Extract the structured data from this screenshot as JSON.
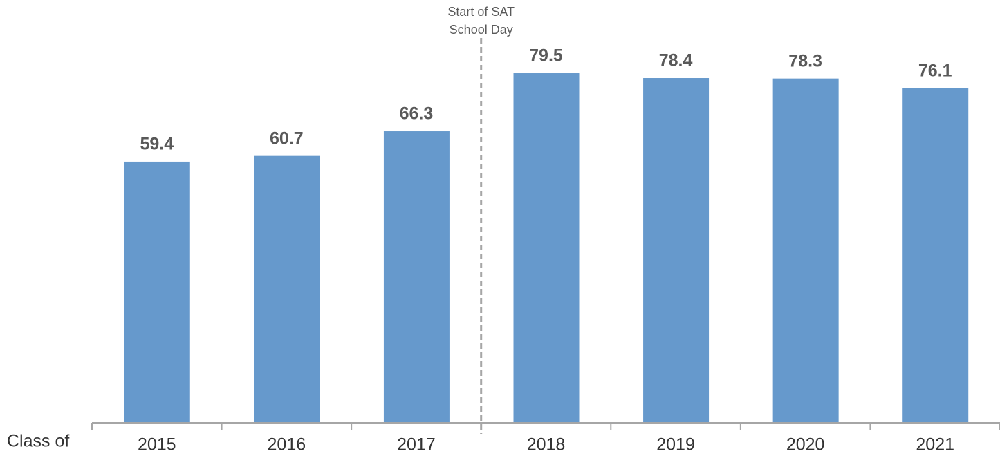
{
  "chart_data": {
    "type": "bar",
    "xlabel": "Class of",
    "annotation": [
      "Start of SAT",
      "School Day"
    ],
    "categories": [
      "2015",
      "2016",
      "2017",
      "2018",
      "2019",
      "2020",
      "2021"
    ],
    "values": [
      59.4,
      60.7,
      66.3,
      79.5,
      78.4,
      78.3,
      76.1
    ],
    "color": "#6699cc",
    "ylim": [
      0,
      96
    ]
  }
}
